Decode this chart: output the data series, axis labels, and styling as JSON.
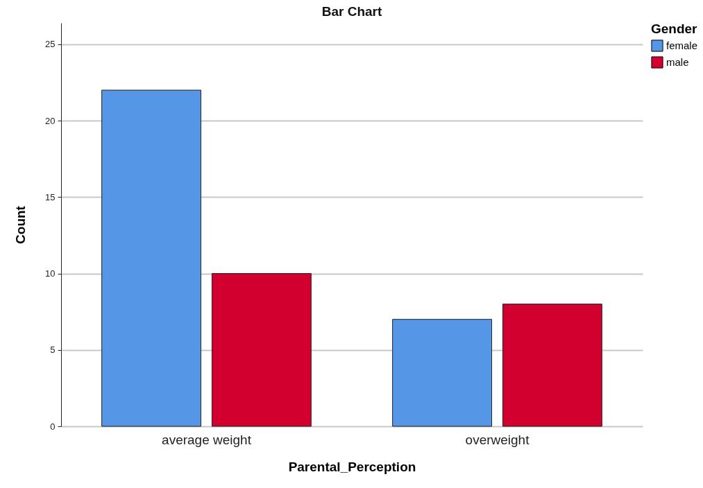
{
  "chart_data": {
    "type": "bar",
    "title": "Bar Chart",
    "xlabel": "Parental_Perception",
    "ylabel": "Count",
    "legend_title": "Gender",
    "categories": [
      "average weight",
      "overweight"
    ],
    "series": [
      {
        "name": "female",
        "color": "#5596e6",
        "values": [
          22,
          7
        ]
      },
      {
        "name": "male",
        "color": "#d2002f",
        "values": [
          10,
          8
        ]
      }
    ],
    "ylim": [
      0,
      26.4
    ],
    "yticks": [
      0,
      5,
      10,
      15,
      20,
      25
    ],
    "grid": "y",
    "legend": "top right"
  }
}
